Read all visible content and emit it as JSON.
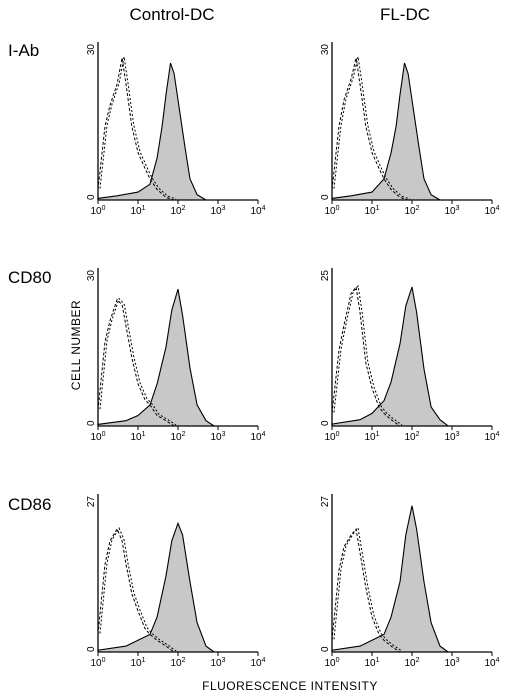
{
  "figure": {
    "columns": [
      "Control-DC",
      "FL-DC"
    ],
    "rows": [
      "I-Ab",
      "CD80",
      "CD86"
    ],
    "xlabel": "FLUORESCENCE INTENSITY",
    "ylabel": "CELL NUMBER",
    "x_tick_labels": [
      "10",
      "0",
      "10",
      "1",
      "10",
      "2",
      "10",
      "3",
      "10",
      "4"
    ]
  },
  "chart_data": [
    {
      "type": "area",
      "row": "I-Ab",
      "column": "Control-DC",
      "x_scale": "log",
      "xlim": [
        1,
        10000
      ],
      "ylim": [
        0,
        30
      ],
      "series": [
        {
          "role": "isotype-control",
          "style": "dashed",
          "points": [
            [
              1,
              2
            ],
            [
              1.5,
              14
            ],
            [
              2,
              18
            ],
            [
              3,
              22
            ],
            [
              4,
              27
            ],
            [
              5,
              22
            ],
            [
              7,
              14
            ],
            [
              10,
              9
            ],
            [
              15,
              6
            ],
            [
              20,
              4
            ],
            [
              30,
              2
            ],
            [
              50,
              0.5
            ],
            [
              80,
              0
            ]
          ]
        },
        {
          "role": "specific-stain",
          "style": "filled",
          "points": [
            [
              1,
              0.3
            ],
            [
              3,
              0.8
            ],
            [
              10,
              1.5
            ],
            [
              20,
              3
            ],
            [
              30,
              8
            ],
            [
              40,
              14
            ],
            [
              50,
              20
            ],
            [
              65,
              26
            ],
            [
              80,
              24
            ],
            [
              100,
              19
            ],
            [
              150,
              10
            ],
            [
              200,
              4
            ],
            [
              300,
              1
            ],
            [
              500,
              0
            ]
          ]
        }
      ]
    },
    {
      "type": "area",
      "row": "I-Ab",
      "column": "FL-DC",
      "x_scale": "log",
      "xlim": [
        1,
        10000
      ],
      "ylim": [
        0,
        30
      ],
      "series": [
        {
          "role": "isotype-control",
          "style": "dashed",
          "points": [
            [
              1,
              2
            ],
            [
              1.5,
              14
            ],
            [
              2,
              19
            ],
            [
              3,
              23
            ],
            [
              4,
              27
            ],
            [
              5,
              22
            ],
            [
              7,
              14
            ],
            [
              10,
              9
            ],
            [
              15,
              6
            ],
            [
              20,
              4
            ],
            [
              30,
              2
            ],
            [
              50,
              0.5
            ],
            [
              80,
              0
            ]
          ]
        },
        {
          "role": "specific-stain",
          "style": "filled",
          "points": [
            [
              1,
              0.3
            ],
            [
              3,
              0.8
            ],
            [
              10,
              1.5
            ],
            [
              20,
              4
            ],
            [
              30,
              9
            ],
            [
              40,
              14
            ],
            [
              50,
              20
            ],
            [
              65,
              26
            ],
            [
              80,
              24
            ],
            [
              100,
              19
            ],
            [
              150,
              10
            ],
            [
              200,
              4
            ],
            [
              300,
              1
            ],
            [
              500,
              0
            ]
          ]
        }
      ]
    },
    {
      "type": "area",
      "row": "CD80",
      "column": "Control-DC",
      "x_scale": "log",
      "xlim": [
        1,
        10000
      ],
      "ylim": [
        0,
        30
      ],
      "series": [
        {
          "role": "isotype-control",
          "style": "dashed",
          "points": [
            [
              1,
              3
            ],
            [
              1.5,
              16
            ],
            [
              2,
              20
            ],
            [
              3,
              24
            ],
            [
              4,
              23
            ],
            [
              5,
              19
            ],
            [
              7,
              13
            ],
            [
              10,
              8
            ],
            [
              15,
              5
            ],
            [
              20,
              4
            ],
            [
              30,
              2
            ],
            [
              50,
              1
            ],
            [
              80,
              0
            ]
          ]
        },
        {
          "role": "specific-stain",
          "style": "filled",
          "points": [
            [
              1,
              0.3
            ],
            [
              5,
              1
            ],
            [
              10,
              2
            ],
            [
              20,
              4
            ],
            [
              30,
              8
            ],
            [
              50,
              15
            ],
            [
              70,
              22
            ],
            [
              100,
              26
            ],
            [
              130,
              21
            ],
            [
              200,
              11
            ],
            [
              300,
              4
            ],
            [
              500,
              1
            ],
            [
              800,
              0
            ]
          ]
        }
      ]
    },
    {
      "type": "area",
      "row": "CD80",
      "column": "FL-DC",
      "x_scale": "log",
      "xlim": [
        1,
        10000
      ],
      "ylim": [
        0,
        25
      ],
      "series": [
        {
          "role": "isotype-control",
          "style": "dashed",
          "points": [
            [
              1,
              2
            ],
            [
              1.5,
              12
            ],
            [
              2,
              16
            ],
            [
              3,
              21
            ],
            [
              4,
              22
            ],
            [
              5,
              18
            ],
            [
              7,
              10
            ],
            [
              10,
              6
            ],
            [
              15,
              3
            ],
            [
              20,
              2
            ],
            [
              30,
              1
            ],
            [
              50,
              0
            ]
          ]
        },
        {
          "role": "specific-stain",
          "style": "filled",
          "points": [
            [
              1,
              0.3
            ],
            [
              5,
              1
            ],
            [
              10,
              2
            ],
            [
              20,
              4
            ],
            [
              30,
              7
            ],
            [
              50,
              13
            ],
            [
              70,
              19
            ],
            [
              100,
              22
            ],
            [
              130,
              18
            ],
            [
              200,
              9
            ],
            [
              300,
              3
            ],
            [
              500,
              1
            ],
            [
              800,
              0
            ]
          ]
        }
      ]
    },
    {
      "type": "area",
      "row": "CD86",
      "column": "Control-DC",
      "x_scale": "log",
      "xlim": [
        1,
        10000
      ],
      "ylim": [
        0,
        27
      ],
      "series": [
        {
          "role": "isotype-control",
          "style": "dashed",
          "points": [
            [
              1,
              3
            ],
            [
              1.5,
              15
            ],
            [
              2,
              19
            ],
            [
              3,
              21
            ],
            [
              4,
              19
            ],
            [
              5,
              15
            ],
            [
              7,
              10
            ],
            [
              10,
              7
            ],
            [
              15,
              4
            ],
            [
              20,
              3
            ],
            [
              30,
              2
            ],
            [
              50,
              1
            ],
            [
              80,
              0
            ]
          ]
        },
        {
          "role": "specific-stain",
          "style": "filled",
          "points": [
            [
              1,
              0.3
            ],
            [
              5,
              1
            ],
            [
              10,
              2
            ],
            [
              20,
              3
            ],
            [
              30,
              6
            ],
            [
              50,
              13
            ],
            [
              70,
              19
            ],
            [
              100,
              22
            ],
            [
              130,
              20
            ],
            [
              200,
              12
            ],
            [
              300,
              5
            ],
            [
              500,
              1
            ],
            [
              800,
              0
            ]
          ]
        }
      ]
    },
    {
      "type": "area",
      "row": "CD86",
      "column": "FL-DC",
      "x_scale": "log",
      "xlim": [
        1,
        10000
      ],
      "ylim": [
        0,
        27
      ],
      "series": [
        {
          "role": "isotype-control",
          "style": "dashed",
          "points": [
            [
              1,
              2
            ],
            [
              1.5,
              14
            ],
            [
              2,
              18
            ],
            [
              3,
              20
            ],
            [
              4,
              21
            ],
            [
              5,
              17
            ],
            [
              7,
              11
            ],
            [
              10,
              6
            ],
            [
              15,
              3
            ],
            [
              20,
              2
            ],
            [
              30,
              1
            ],
            [
              50,
              0
            ]
          ]
        },
        {
          "role": "specific-stain",
          "style": "filled",
          "points": [
            [
              1,
              0.3
            ],
            [
              5,
              1
            ],
            [
              10,
              2
            ],
            [
              20,
              3
            ],
            [
              30,
              6
            ],
            [
              50,
              12
            ],
            [
              70,
              20
            ],
            [
              100,
              25
            ],
            [
              130,
              21
            ],
            [
              200,
              12
            ],
            [
              300,
              5
            ],
            [
              500,
              1
            ],
            [
              800,
              0
            ]
          ]
        }
      ]
    }
  ]
}
